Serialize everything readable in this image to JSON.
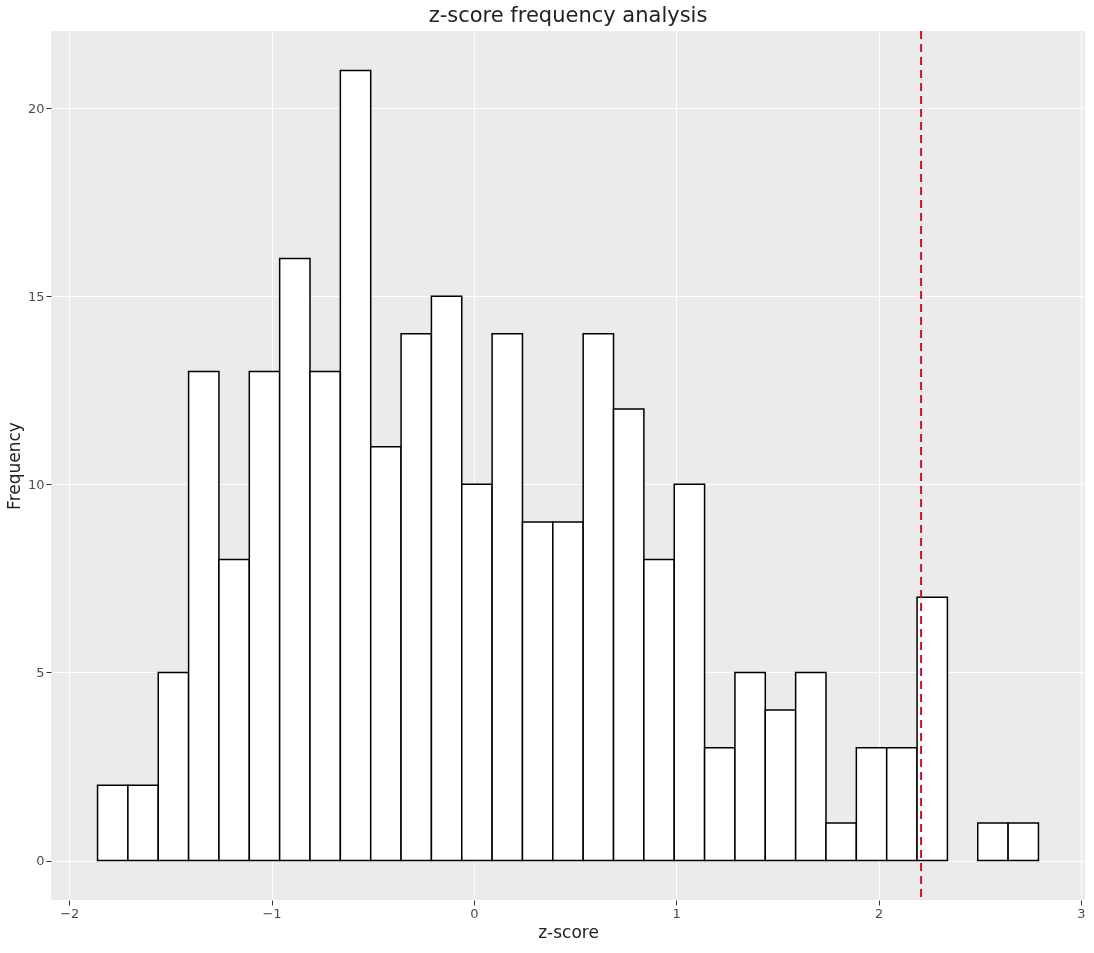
{
  "chart_data": {
    "type": "histogram",
    "title": "z-score frequency analysis",
    "xlabel": "z-score",
    "ylabel": "Frequency",
    "bins": [
      -1.86,
      -1.71,
      -1.56,
      -1.41,
      -1.26,
      -1.11,
      -0.96,
      -0.81,
      -0.66,
      -0.51,
      -0.36,
      -0.21,
      -0.06,
      0.09,
      0.24,
      0.39,
      0.54,
      0.69,
      0.84,
      0.99,
      1.14,
      1.29,
      1.44,
      1.59,
      1.74,
      1.89,
      2.04,
      2.19,
      2.34,
      2.49,
      2.64,
      2.79
    ],
    "values": [
      2,
      2,
      5,
      13,
      8,
      13,
      16,
      13,
      21,
      11,
      14,
      15,
      10,
      14,
      9,
      9,
      14,
      12,
      8,
      10,
      3,
      5,
      4,
      5,
      1,
      3,
      3,
      7,
      0,
      1,
      1
    ],
    "color": "#ffffff",
    "xlim": [
      -2.09,
      3.02
    ],
    "xticks": [
      -2,
      -1,
      0,
      1,
      2,
      3
    ],
    "ylim": [
      -1.05,
      22.05
    ],
    "yticks": [
      0,
      5,
      10,
      15,
      20
    ],
    "grid": true,
    "ref_lines": [
      {
        "axis": "x",
        "value": 2.21,
        "color": "#c0152a",
        "line_style": "dashed"
      }
    ]
  }
}
